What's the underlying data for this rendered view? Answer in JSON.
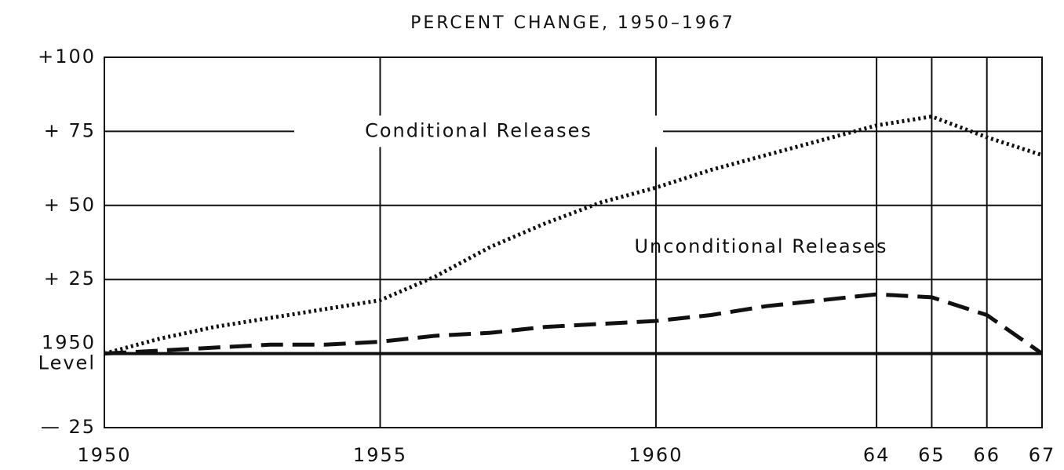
{
  "chart_data": {
    "type": "line",
    "title": "PERCENT CHANGE, 1950–1967",
    "x": [
      1950,
      1951,
      1952,
      1953,
      1954,
      1955,
      1956,
      1957,
      1958,
      1959,
      1960,
      1961,
      1962,
      1963,
      1964,
      1965,
      1966,
      1967
    ],
    "series": [
      {
        "name": "Conditional Releases",
        "color": "#111111",
        "style": "dotted",
        "values": [
          0,
          5,
          9,
          12,
          15,
          18,
          26,
          36,
          44,
          51,
          56,
          62,
          67,
          72,
          77,
          80,
          73,
          67
        ]
      },
      {
        "name": "Unconditional Releases",
        "color": "#111111",
        "style": "dashed",
        "values": [
          0,
          1,
          2,
          3,
          3,
          4,
          6,
          7,
          9,
          10,
          11,
          13,
          16,
          18,
          20,
          19,
          13,
          0
        ]
      }
    ],
    "xlim": [
      1950,
      1967
    ],
    "xticks": [
      1950,
      1955,
      1960,
      {
        "value": 1964,
        "label": "64"
      },
      {
        "value": 1965,
        "label": "65"
      },
      {
        "value": 1966,
        "label": "66"
      },
      {
        "value": 1967,
        "label": "67"
      }
    ],
    "ylim": [
      -25,
      100
    ],
    "yticks": [
      {
        "value": -25,
        "label": "— 25"
      },
      {
        "value": 0,
        "label": "1950 Level"
      },
      {
        "value": 25,
        "label": "+ 25"
      },
      {
        "value": 50,
        "label": "+ 50"
      },
      {
        "value": 75,
        "label": "+ 75"
      },
      {
        "value": 100,
        "label": "+100"
      }
    ],
    "grid": true
  }
}
